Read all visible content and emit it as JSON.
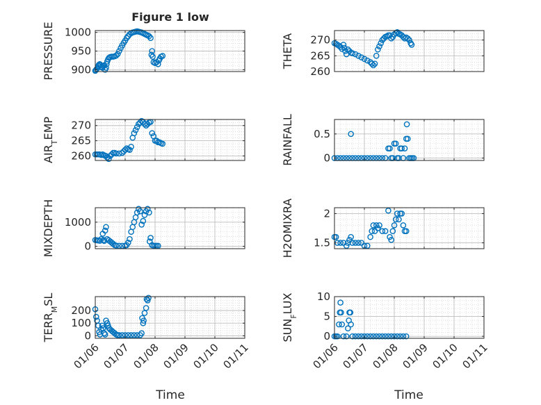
{
  "title": "Figure 1 low",
  "xlabel": "Time",
  "x_ticks": [
    "01/06",
    "01/07",
    "01/08",
    "01/09",
    "01/10",
    "01/11"
  ],
  "chart_data": [
    {
      "type": "scatter",
      "ylabel": "PRESSURE",
      "ylim": [
        895,
        1005
      ],
      "yticks": [
        900,
        950,
        1000
      ],
      "grid": true,
      "points": [
        [
          0.0,
          897
        ],
        [
          0.02,
          899
        ],
        [
          0.05,
          902
        ],
        [
          0.08,
          905
        ],
        [
          0.1,
          910
        ],
        [
          0.12,
          913
        ],
        [
          0.15,
          915
        ],
        [
          0.18,
          912
        ],
        [
          0.21,
          908
        ],
        [
          0.24,
          905
        ],
        [
          0.27,
          910
        ],
        [
          0.3,
          912
        ],
        [
          0.33,
          900
        ],
        [
          0.36,
          905
        ],
        [
          0.38,
          915
        ],
        [
          0.4,
          922
        ],
        [
          0.43,
          928
        ],
        [
          0.46,
          932
        ],
        [
          0.5,
          934
        ],
        [
          0.55,
          935
        ],
        [
          0.6,
          935
        ],
        [
          0.65,
          936
        ],
        [
          0.7,
          938
        ],
        [
          0.75,
          942
        ],
        [
          0.8,
          950
        ],
        [
          0.85,
          958
        ],
        [
          0.9,
          965
        ],
        [
          0.95,
          972
        ],
        [
          1.0,
          978
        ],
        [
          1.05,
          985
        ],
        [
          1.1,
          990
        ],
        [
          1.15,
          995
        ],
        [
          1.2,
          998
        ],
        [
          1.25,
          1000
        ],
        [
          1.3,
          1001
        ],
        [
          1.35,
          1002
        ],
        [
          1.4,
          1003
        ],
        [
          1.45,
          1002
        ],
        [
          1.5,
          1001
        ],
        [
          1.55,
          1000
        ],
        [
          1.6,
          998
        ],
        [
          1.65,
          996
        ],
        [
          1.7,
          994
        ],
        [
          1.75,
          992
        ],
        [
          1.8,
          990
        ],
        [
          1.85,
          985
        ],
        [
          1.88,
          940
        ],
        [
          1.9,
          950
        ],
        [
          1.92,
          935
        ],
        [
          1.95,
          920
        ],
        [
          2.0,
          918
        ],
        [
          2.05,
          920
        ],
        [
          2.1,
          915
        ],
        [
          2.13,
          925
        ],
        [
          2.16,
          930
        ],
        [
          2.2,
          935
        ],
        [
          2.25,
          937
        ]
      ]
    },
    {
      "type": "scatter",
      "ylabel": "THETA",
      "ylim": [
        260,
        273
      ],
      "yticks": [
        260,
        265,
        270
      ],
      "grid": true,
      "points": [
        [
          0.0,
          269
        ],
        [
          0.05,
          268.8
        ],
        [
          0.1,
          268.5
        ],
        [
          0.15,
          268.2
        ],
        [
          0.2,
          267.8
        ],
        [
          0.25,
          267.2
        ],
        [
          0.3,
          268.5
        ],
        [
          0.33,
          267.5
        ],
        [
          0.36,
          266.5
        ],
        [
          0.4,
          265.5
        ],
        [
          0.45,
          267
        ],
        [
          0.5,
          266.5
        ],
        [
          0.55,
          266
        ],
        [
          0.6,
          265.8
        ],
        [
          0.7,
          265.5
        ],
        [
          0.8,
          265
        ],
        [
          0.9,
          264.5
        ],
        [
          1.0,
          264
        ],
        [
          1.1,
          263.5
        ],
        [
          1.2,
          263
        ],
        [
          1.25,
          262.5
        ],
        [
          1.3,
          262
        ],
        [
          1.35,
          262.5
        ],
        [
          1.4,
          265
        ],
        [
          1.45,
          267
        ],
        [
          1.5,
          268
        ],
        [
          1.55,
          269
        ],
        [
          1.6,
          270
        ],
        [
          1.65,
          270.5
        ],
        [
          1.7,
          271
        ],
        [
          1.75,
          271.2
        ],
        [
          1.8,
          271.5
        ],
        [
          1.85,
          271.5
        ],
        [
          1.9,
          270.5
        ],
        [
          1.95,
          271
        ],
        [
          2.0,
          271.8
        ],
        [
          2.05,
          272.2
        ],
        [
          2.1,
          272.5
        ],
        [
          2.15,
          272
        ],
        [
          2.2,
          271.8
        ],
        [
          2.25,
          271.5
        ],
        [
          2.3,
          271
        ],
        [
          2.35,
          270.5
        ],
        [
          2.4,
          270.8
        ],
        [
          2.45,
          270.5
        ],
        [
          2.5,
          270
        ],
        [
          2.55,
          269
        ],
        [
          2.58,
          268.5
        ]
      ]
    },
    {
      "type": "scatter",
      "ylabel": "AIR_TEMP",
      "ylim": [
        258.5,
        272
      ],
      "yticks": [
        260,
        265,
        270
      ],
      "grid": true,
      "points": [
        [
          0.0,
          260.5
        ],
        [
          0.05,
          260.5
        ],
        [
          0.1,
          260.5
        ],
        [
          0.15,
          260.5
        ],
        [
          0.2,
          260.3
        ],
        [
          0.25,
          260.5
        ],
        [
          0.3,
          260.2
        ],
        [
          0.35,
          260
        ],
        [
          0.4,
          259.5
        ],
        [
          0.45,
          259
        ],
        [
          0.5,
          260
        ],
        [
          0.55,
          260.5
        ],
        [
          0.6,
          261
        ],
        [
          0.65,
          261
        ],
        [
          0.7,
          260.8
        ],
        [
          0.8,
          260.8
        ],
        [
          0.9,
          261
        ],
        [
          0.95,
          261.5
        ],
        [
          1.0,
          262
        ],
        [
          1.05,
          262.5
        ],
        [
          1.1,
          262.2
        ],
        [
          1.15,
          262
        ],
        [
          1.2,
          263
        ],
        [
          1.25,
          266
        ],
        [
          1.3,
          267.5
        ],
        [
          1.35,
          268.5
        ],
        [
          1.4,
          269.5
        ],
        [
          1.45,
          270.5
        ],
        [
          1.5,
          271
        ],
        [
          1.55,
          271.5
        ],
        [
          1.6,
          271.2
        ],
        [
          1.65,
          270.5
        ],
        [
          1.7,
          270
        ],
        [
          1.75,
          270.5
        ],
        [
          1.8,
          271
        ],
        [
          1.85,
          271.2
        ],
        [
          1.9,
          267.5
        ],
        [
          1.95,
          266.5
        ],
        [
          2.0,
          265
        ],
        [
          2.05,
          265
        ],
        [
          2.1,
          264.5
        ],
        [
          2.15,
          264.5
        ],
        [
          2.2,
          264.2
        ],
        [
          2.25,
          264
        ]
      ]
    },
    {
      "type": "scatter",
      "ylabel": "RAINFALL",
      "ylim": [
        -0.05,
        0.8
      ],
      "yticks": [
        0,
        0.5
      ],
      "grid": true,
      "points": [
        [
          0.0,
          0
        ],
        [
          0.1,
          0
        ],
        [
          0.2,
          0
        ],
        [
          0.3,
          0
        ],
        [
          0.4,
          0
        ],
        [
          0.5,
          0
        ],
        [
          0.55,
          0.5
        ],
        [
          0.6,
          0
        ],
        [
          0.7,
          0
        ],
        [
          0.8,
          0
        ],
        [
          0.9,
          0
        ],
        [
          1.0,
          0
        ],
        [
          1.1,
          0
        ],
        [
          1.2,
          0
        ],
        [
          1.3,
          0
        ],
        [
          1.4,
          0
        ],
        [
          1.5,
          0
        ],
        [
          1.6,
          0
        ],
        [
          1.7,
          0
        ],
        [
          1.8,
          0.2
        ],
        [
          1.85,
          0.2
        ],
        [
          1.9,
          0
        ],
        [
          1.95,
          0
        ],
        [
          2.0,
          0.3
        ],
        [
          2.05,
          0.3
        ],
        [
          2.1,
          0
        ],
        [
          2.15,
          0
        ],
        [
          2.2,
          0.2
        ],
        [
          2.25,
          0.2
        ],
        [
          2.3,
          0
        ],
        [
          2.35,
          0.2
        ],
        [
          2.4,
          0.4
        ],
        [
          2.42,
          0.7
        ],
        [
          2.45,
          0.4
        ],
        [
          2.5,
          0
        ],
        [
          2.55,
          0
        ],
        [
          2.6,
          0
        ],
        [
          2.65,
          0
        ]
      ]
    },
    {
      "type": "scatter",
      "ylabel": "MIXDEPTH",
      "ylim": [
        -100,
        1600
      ],
      "yticks": [
        0,
        1000
      ],
      "grid": true,
      "points": [
        [
          0.0,
          260
        ],
        [
          0.05,
          250
        ],
        [
          0.1,
          240
        ],
        [
          0.15,
          230
        ],
        [
          0.2,
          300
        ],
        [
          0.25,
          520
        ],
        [
          0.28,
          260
        ],
        [
          0.3,
          220
        ],
        [
          0.33,
          650
        ],
        [
          0.36,
          800
        ],
        [
          0.4,
          300
        ],
        [
          0.45,
          250
        ],
        [
          0.5,
          200
        ],
        [
          0.55,
          150
        ],
        [
          0.6,
          100
        ],
        [
          0.65,
          50
        ],
        [
          0.7,
          30
        ],
        [
          0.8,
          20
        ],
        [
          0.9,
          20
        ],
        [
          1.0,
          30
        ],
        [
          1.05,
          50
        ],
        [
          1.1,
          150
        ],
        [
          1.15,
          300
        ],
        [
          1.2,
          600
        ],
        [
          1.25,
          800
        ],
        [
          1.3,
          1000
        ],
        [
          1.35,
          1200
        ],
        [
          1.4,
          1400
        ],
        [
          1.45,
          1550
        ],
        [
          1.5,
          1450
        ],
        [
          1.55,
          900
        ],
        [
          1.6,
          1050
        ],
        [
          1.65,
          1300
        ],
        [
          1.7,
          1450
        ],
        [
          1.75,
          1550
        ],
        [
          1.8,
          1400
        ],
        [
          1.82,
          200
        ],
        [
          1.85,
          350
        ],
        [
          1.9,
          50
        ],
        [
          1.95,
          20
        ],
        [
          2.0,
          20
        ],
        [
          2.05,
          20
        ],
        [
          2.1,
          20
        ]
      ]
    },
    {
      "type": "scatter",
      "ylabel": "H2OMIXRA",
      "ylim": [
        1.4,
        2.1
      ],
      "yticks": [
        1.5,
        2
      ],
      "grid": true,
      "points": [
        [
          0.0,
          1.6
        ],
        [
          0.05,
          1.6
        ],
        [
          0.1,
          1.5
        ],
        [
          0.2,
          1.5
        ],
        [
          0.3,
          1.5
        ],
        [
          0.4,
          1.45
        ],
        [
          0.45,
          1.5
        ],
        [
          0.5,
          1.55
        ],
        [
          0.55,
          1.6
        ],
        [
          0.6,
          1.5
        ],
        [
          0.7,
          1.5
        ],
        [
          0.8,
          1.5
        ],
        [
          0.9,
          1.5
        ],
        [
          1.0,
          1.45
        ],
        [
          1.1,
          1.45
        ],
        [
          1.2,
          1.6
        ],
        [
          1.25,
          1.7
        ],
        [
          1.3,
          1.8
        ],
        [
          1.35,
          1.7
        ],
        [
          1.4,
          1.8
        ],
        [
          1.45,
          1.75
        ],
        [
          1.5,
          1.8
        ],
        [
          1.6,
          1.7
        ],
        [
          1.7,
          1.7
        ],
        [
          1.8,
          2.05
        ],
        [
          1.85,
          1.6
        ],
        [
          1.9,
          1.55
        ],
        [
          1.95,
          1.7
        ],
        [
          2.0,
          1.8
        ],
        [
          2.05,
          1.9
        ],
        [
          2.1,
          2.0
        ],
        [
          2.15,
          1.9
        ],
        [
          2.2,
          2.0
        ],
        [
          2.25,
          2.0
        ],
        [
          2.3,
          1.8
        ],
        [
          2.35,
          1.7
        ],
        [
          2.4,
          1.7
        ]
      ]
    },
    {
      "type": "scatter",
      "ylabel": "TERR_MSL",
      "ylim": [
        -20,
        310
      ],
      "yticks": [
        0,
        100,
        200
      ],
      "grid": true,
      "points": [
        [
          0.0,
          210
        ],
        [
          0.03,
          150
        ],
        [
          0.06,
          120
        ],
        [
          0.1,
          80
        ],
        [
          0.13,
          30
        ],
        [
          0.16,
          10
        ],
        [
          0.2,
          50
        ],
        [
          0.23,
          80
        ],
        [
          0.26,
          60
        ],
        [
          0.3,
          20
        ],
        [
          0.33,
          10
        ],
        [
          0.36,
          120
        ],
        [
          0.4,
          100
        ],
        [
          0.43,
          80
        ],
        [
          0.46,
          60
        ],
        [
          0.5,
          50
        ],
        [
          0.55,
          40
        ],
        [
          0.6,
          30
        ],
        [
          0.65,
          20
        ],
        [
          0.7,
          10
        ],
        [
          0.75,
          5
        ],
        [
          0.8,
          5
        ],
        [
          0.9,
          5
        ],
        [
          1.0,
          5
        ],
        [
          1.1,
          5
        ],
        [
          1.2,
          5
        ],
        [
          1.3,
          5
        ],
        [
          1.4,
          5
        ],
        [
          1.5,
          5
        ],
        [
          1.55,
          20
        ],
        [
          1.57,
          140
        ],
        [
          1.6,
          100
        ],
        [
          1.62,
          120
        ],
        [
          1.65,
          180
        ],
        [
          1.7,
          220
        ],
        [
          1.72,
          290
        ],
        [
          1.75,
          280
        ],
        [
          1.78,
          300
        ]
      ]
    },
    {
      "type": "scatter",
      "ylabel": "SUN_FLUX",
      "ylim": [
        -0.5,
        10
      ],
      "yticks": [
        0,
        5,
        10
      ],
      "grid": true,
      "points": [
        [
          0.0,
          0
        ],
        [
          0.05,
          0
        ],
        [
          0.1,
          0
        ],
        [
          0.15,
          3
        ],
        [
          0.18,
          6
        ],
        [
          0.2,
          8.5
        ],
        [
          0.22,
          6
        ],
        [
          0.25,
          3
        ],
        [
          0.3,
          0
        ],
        [
          0.4,
          0
        ],
        [
          0.45,
          2
        ],
        [
          0.48,
          4
        ],
        [
          0.5,
          6
        ],
        [
          0.53,
          6
        ],
        [
          0.55,
          3
        ],
        [
          0.6,
          0
        ],
        [
          0.7,
          0
        ],
        [
          0.8,
          0
        ],
        [
          0.9,
          0
        ],
        [
          1.0,
          0
        ],
        [
          1.1,
          0
        ],
        [
          1.2,
          0
        ],
        [
          1.3,
          0
        ],
        [
          1.4,
          0
        ],
        [
          1.5,
          0
        ],
        [
          1.6,
          0
        ],
        [
          1.7,
          0
        ],
        [
          1.8,
          0
        ],
        [
          1.9,
          0
        ],
        [
          2.0,
          0
        ],
        [
          2.1,
          0
        ],
        [
          2.2,
          0
        ],
        [
          2.3,
          0
        ],
        [
          2.4,
          0
        ]
      ]
    }
  ]
}
